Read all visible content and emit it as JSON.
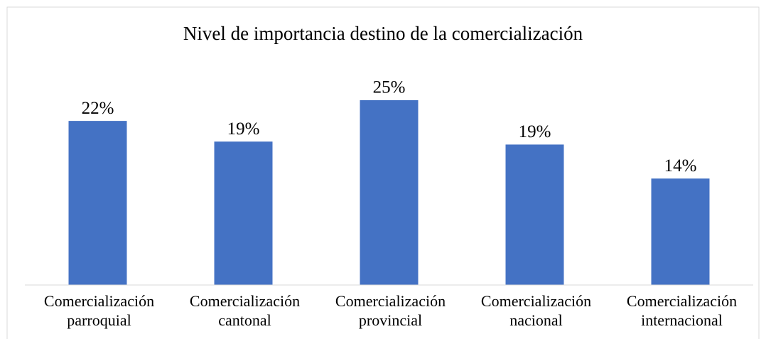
{
  "chart_data": {
    "type": "bar",
    "title": "Nivel de importancia destino de la comercialización",
    "categories": [
      "Comercialización parroquial",
      "Comercialización cantonal",
      "Comercialización provincial",
      "Comercialización nacional",
      "Comercialización internacional"
    ],
    "values": [
      22.2,
      19.4,
      25.0,
      19.0,
      14.4
    ],
    "value_labels": [
      "22%",
      "19%",
      "25%",
      "19%",
      "14%"
    ],
    "color": "#4472c4",
    "ylim": [
      0,
      30
    ],
    "grid": false
  }
}
